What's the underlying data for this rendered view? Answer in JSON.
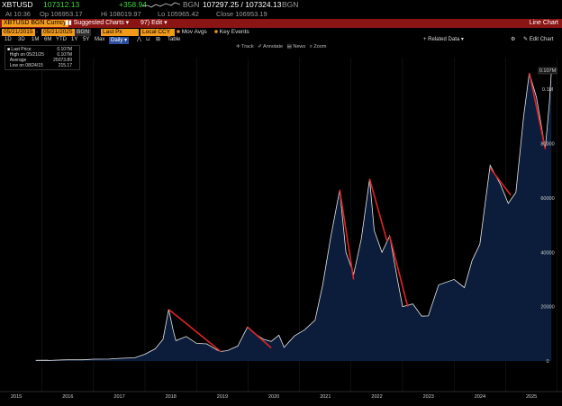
{
  "header": {
    "ticker": "XBTUSD",
    "last": "107312.13",
    "change": "+358.94",
    "source1": "BGN",
    "bid_ask": "107297.25 / 107324.13",
    "source2": "BGN",
    "time": "At 10:36",
    "open": "Op 106953.17",
    "high": "Hi 108019.97",
    "low": "Lo 105965.42",
    "close": "Close 106953.19",
    "window_title": "Line Chart"
  },
  "menu": {
    "security": "XBTUSD BGN Curncy",
    "suggested": "Suggested Charts",
    "edit": "Edit"
  },
  "controls": {
    "start_date": "05/21/2015",
    "end_date": "05/21/2025",
    "source": "BGN",
    "field": "Last Px",
    "currency": "Local CCY",
    "mov_avgs": "Mov Avgs",
    "key_events": "Key Events"
  },
  "periods": [
    "1D",
    "3D",
    "1M",
    "6M",
    "YTD",
    "1Y",
    "5Y",
    "Max"
  ],
  "frequency": "Daily",
  "table_label": "Table",
  "related_data": "Related Data",
  "edit_chart": "Edit Chart",
  "toolbar": {
    "track": "Track",
    "annotate": "Annotate",
    "news": "News",
    "zoom": "Zoom"
  },
  "legend": [
    {
      "label": "Last Price",
      "value": "0.107M"
    },
    {
      "label": "High on 05/21/25",
      "value": "0.107M"
    },
    {
      "label": "Average",
      "value": "25073.89"
    },
    {
      "label": "Low on 08/24/15",
      "value": "215.17"
    }
  ],
  "chart_data": {
    "type": "area",
    "x_labels": [
      "2015",
      "2016",
      "2017",
      "2018",
      "2019",
      "2020",
      "2021",
      "2022",
      "2023",
      "2024",
      "2025"
    ],
    "y_ticks": [
      "0.107M",
      "0.1M",
      "80000",
      "60000",
      "40000",
      "20000",
      "0"
    ],
    "ylim": [
      0,
      110000
    ],
    "series": [
      {
        "values": [
          [
            2015.38,
            240
          ],
          [
            2015.6,
            280
          ],
          [
            2015.65,
            215
          ],
          [
            2015.9,
            400
          ],
          [
            2016.0,
            430
          ],
          [
            2016.3,
            420
          ],
          [
            2016.5,
            650
          ],
          [
            2016.8,
            700
          ],
          [
            2017.0,
            970
          ],
          [
            2017.3,
            1200
          ],
          [
            2017.5,
            2500
          ],
          [
            2017.7,
            4500
          ],
          [
            2017.85,
            8000
          ],
          [
            2017.96,
            19000
          ],
          [
            2018.05,
            11000
          ],
          [
            2018.1,
            7500
          ],
          [
            2018.3,
            9000
          ],
          [
            2018.5,
            6500
          ],
          [
            2018.7,
            6300
          ],
          [
            2018.9,
            4000
          ],
          [
            2018.97,
            3500
          ],
          [
            2019.1,
            3800
          ],
          [
            2019.3,
            5500
          ],
          [
            2019.49,
            12500
          ],
          [
            2019.6,
            10500
          ],
          [
            2019.8,
            8000
          ],
          [
            2019.95,
            7200
          ],
          [
            2020.1,
            9500
          ],
          [
            2020.2,
            5000
          ],
          [
            2020.4,
            9200
          ],
          [
            2020.6,
            11500
          ],
          [
            2020.8,
            15000
          ],
          [
            2020.95,
            28000
          ],
          [
            2021.1,
            45000
          ],
          [
            2021.28,
            63000
          ],
          [
            2021.4,
            40000
          ],
          [
            2021.55,
            32000
          ],
          [
            2021.7,
            45000
          ],
          [
            2021.86,
            67000
          ],
          [
            2021.95,
            48000
          ],
          [
            2022.1,
            40000
          ],
          [
            2022.25,
            46000
          ],
          [
            2022.4,
            30000
          ],
          [
            2022.5,
            20000
          ],
          [
            2022.7,
            21000
          ],
          [
            2022.87,
            16500
          ],
          [
            2023.0,
            16600
          ],
          [
            2023.2,
            28000
          ],
          [
            2023.5,
            30000
          ],
          [
            2023.7,
            27000
          ],
          [
            2023.85,
            37000
          ],
          [
            2024.0,
            43000
          ],
          [
            2024.2,
            72000
          ],
          [
            2024.4,
            65000
          ],
          [
            2024.55,
            58000
          ],
          [
            2024.7,
            62000
          ],
          [
            2024.85,
            90000
          ],
          [
            2024.96,
            106000
          ],
          [
            2025.1,
            97000
          ],
          [
            2025.27,
            78000
          ],
          [
            2025.35,
            95000
          ],
          [
            2025.39,
            107000
          ]
        ]
      }
    ],
    "trend_lines": [
      [
        [
          2017.96,
          19000
        ],
        [
          2018.97,
          3500
        ]
      ],
      [
        [
          2019.49,
          12500
        ],
        [
          2019.95,
          4800
        ]
      ],
      [
        [
          2021.28,
          63000
        ],
        [
          2021.55,
          30000
        ]
      ],
      [
        [
          2021.86,
          67000
        ],
        [
          2022.2,
          44000
        ]
      ],
      [
        [
          2022.25,
          46000
        ],
        [
          2022.6,
          20000
        ]
      ],
      [
        [
          2024.2,
          71000
        ],
        [
          2024.6,
          61000
        ]
      ],
      [
        [
          2024.96,
          106000
        ],
        [
          2025.27,
          78000
        ]
      ]
    ],
    "colors": {
      "fill": "#0b1d3a",
      "line": "#e6e6e6",
      "trend": "#e02424"
    }
  }
}
